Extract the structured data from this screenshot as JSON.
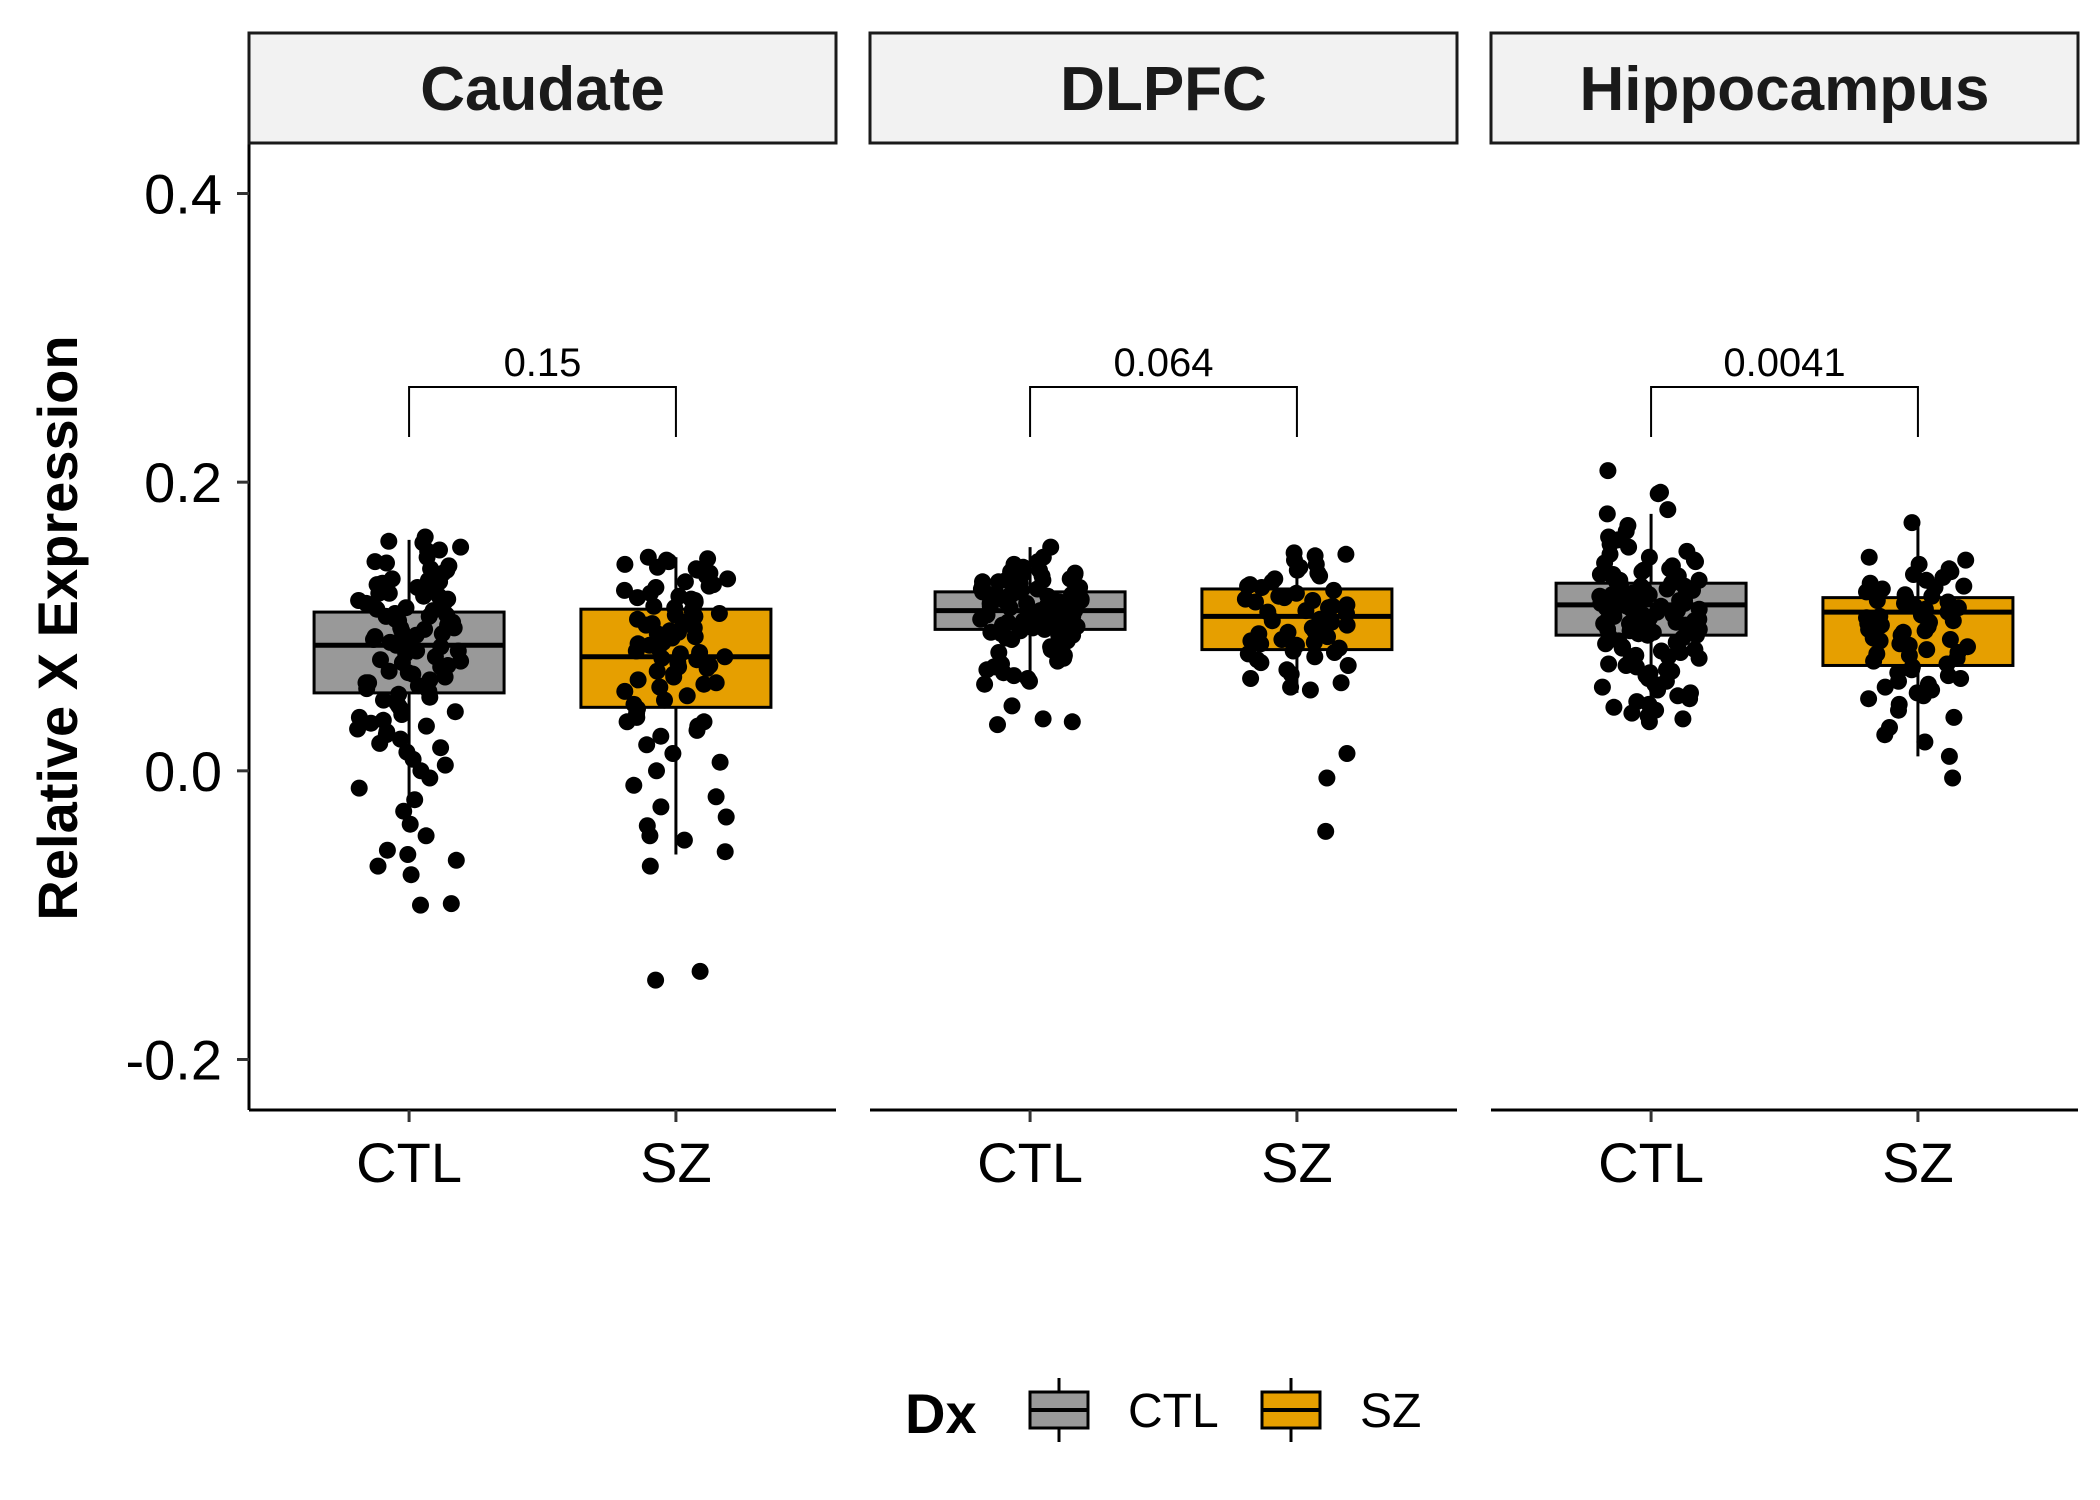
{
  "chart_data": {
    "type": "boxplot",
    "ylabel": "Relative X Expression",
    "ylim": [
      -0.235,
      0.435
    ],
    "y_ticks": [
      -0.2,
      0.0,
      0.2,
      0.4
    ],
    "y_tick_labels": [
      "-0.2",
      "0.0",
      "0.2",
      "0.4"
    ],
    "categories": [
      "CTL",
      "SZ"
    ],
    "colors": {
      "CTL": "#999999",
      "SZ": "#E69F00"
    },
    "legend": {
      "title": "Dx",
      "position": "bottom",
      "entries": [
        "CTL",
        "SZ"
      ]
    },
    "grid": false,
    "facets": [
      {
        "name": "Caudate",
        "p_value": "0.15",
        "boxes": [
          {
            "group": "CTL",
            "q1": 0.054,
            "median": 0.087,
            "q3": 0.11,
            "whisker_low": -0.027,
            "whisker_high": 0.16
          },
          {
            "group": "SZ",
            "q1": 0.044,
            "median": 0.079,
            "q3": 0.112,
            "whisker_low": -0.058,
            "whisker_high": 0.148
          }
        ],
        "points": [
          {
            "group": "CTL",
            "values": [
              0.162,
              0.159,
              0.158,
              0.155,
              0.152,
              0.148,
              0.145,
              0.142,
              0.14,
              0.137,
              0.135,
              0.133,
              0.131,
              0.129,
              0.127,
              0.125,
              0.123,
              0.121,
              0.119,
              0.117,
              0.115,
              0.113,
              0.111,
              0.109,
              0.107,
              0.105,
              0.103,
              0.101,
              0.099,
              0.097,
              0.095,
              0.093,
              0.091,
              0.089,
              0.087,
              0.085,
              0.083,
              0.081,
              0.079,
              0.077,
              0.075,
              0.073,
              0.071,
              0.069,
              0.067,
              0.065,
              0.063,
              0.061,
              0.059,
              0.057,
              0.055,
              0.053,
              0.051,
              0.049,
              0.047,
              0.045,
              0.043,
              0.041,
              0.039,
              0.037,
              0.035,
              0.033,
              0.031,
              0.029,
              0.027,
              0.025,
              0.022,
              0.019,
              0.016,
              0.013,
              0.008,
              0.004,
              0.0,
              -0.005,
              -0.012,
              -0.02,
              -0.028,
              -0.037,
              -0.045,
              -0.055,
              -0.058,
              -0.062,
              -0.066,
              -0.072,
              -0.092,
              -0.093,
              0.118,
              0.121,
              0.098,
              0.104,
              0.086,
              0.132,
              0.144,
              0.153,
              0.076,
              0.068,
              0.112,
              0.094,
              0.127,
              0.139,
              0.083,
              0.107,
              0.061,
              0.099,
              0.116,
              0.13,
              0.09,
              0.072,
              0.123,
              0.108
            ]
          },
          {
            "group": "SZ",
            "values": [
              0.148,
              0.147,
              0.146,
              0.145,
              0.143,
              0.141,
              0.139,
              0.137,
              0.135,
              0.133,
              0.131,
              0.129,
              0.127,
              0.125,
              0.123,
              0.121,
              0.119,
              0.117,
              0.115,
              0.113,
              0.111,
              0.109,
              0.107,
              0.105,
              0.103,
              0.101,
              0.099,
              0.097,
              0.095,
              0.093,
              0.091,
              0.089,
              0.087,
              0.085,
              0.083,
              0.081,
              0.079,
              0.077,
              0.075,
              0.073,
              0.071,
              0.069,
              0.067,
              0.065,
              0.063,
              0.061,
              0.058,
              0.055,
              0.052,
              0.049,
              0.046,
              0.043,
              0.04,
              0.037,
              0.034,
              0.031,
              0.028,
              0.024,
              0.018,
              0.012,
              0.006,
              0.0,
              -0.01,
              -0.018,
              -0.025,
              -0.032,
              -0.038,
              -0.045,
              -0.048,
              -0.056,
              -0.066,
              -0.139,
              -0.145,
              0.128,
              0.114,
              0.096,
              0.082,
              0.072,
              0.14,
              0.118,
              0.102,
              0.088,
              0.06,
              0.034,
              0.12,
              0.108,
              0.092,
              0.078
            ]
          }
        ]
      },
      {
        "name": "DLPFC",
        "p_value": "0.064",
        "boxes": [
          {
            "group": "CTL",
            "q1": 0.098,
            "median": 0.111,
            "q3": 0.124,
            "whisker_low": 0.068,
            "whisker_high": 0.155
          },
          {
            "group": "SZ",
            "q1": 0.084,
            "median": 0.107,
            "q3": 0.126,
            "whisker_low": 0.054,
            "whisker_high": 0.15
          }
        ],
        "points": [
          {
            "group": "CTL",
            "values": [
              0.155,
              0.148,
              0.145,
              0.143,
              0.141,
              0.14,
              0.139,
              0.138,
              0.137,
              0.136,
              0.135,
              0.134,
              0.133,
              0.132,
              0.131,
              0.13,
              0.129,
              0.128,
              0.127,
              0.126,
              0.125,
              0.124,
              0.123,
              0.122,
              0.121,
              0.12,
              0.119,
              0.118,
              0.117,
              0.116,
              0.115,
              0.114,
              0.113,
              0.112,
              0.111,
              0.11,
              0.109,
              0.108,
              0.107,
              0.106,
              0.105,
              0.104,
              0.103,
              0.102,
              0.101,
              0.1,
              0.099,
              0.098,
              0.097,
              0.096,
              0.095,
              0.094,
              0.093,
              0.092,
              0.091,
              0.09,
              0.088,
              0.086,
              0.084,
              0.082,
              0.08,
              0.078,
              0.076,
              0.074,
              0.072,
              0.07,
              0.068,
              0.066,
              0.064,
              0.062,
              0.06,
              0.045,
              0.036,
              0.034,
              0.032,
              0.128,
              0.118,
              0.112,
              0.106,
              0.1,
              0.126,
              0.116,
              0.11,
              0.104,
              0.098,
              0.132,
              0.122,
              0.114,
              0.108,
              0.102,
              0.094,
              0.136,
              0.124,
              0.119,
              0.113,
              0.107,
              0.101,
              0.131,
              0.121,
              0.111,
              0.097
            ]
          },
          {
            "group": "SZ",
            "values": [
              0.151,
              0.15,
              0.149,
              0.146,
              0.143,
              0.141,
              0.139,
              0.137,
              0.135,
              0.133,
              0.131,
              0.129,
              0.127,
              0.125,
              0.123,
              0.121,
              0.119,
              0.117,
              0.115,
              0.113,
              0.111,
              0.109,
              0.107,
              0.105,
              0.103,
              0.101,
              0.099,
              0.097,
              0.095,
              0.093,
              0.091,
              0.089,
              0.087,
              0.085,
              0.083,
              0.081,
              0.079,
              0.077,
              0.075,
              0.073,
              0.07,
              0.067,
              0.064,
              0.061,
              0.058,
              0.056,
              0.012,
              -0.005,
              -0.042,
              0.12,
              0.11,
              0.1,
              0.09,
              0.128,
              0.114,
              0.096,
              0.082,
              0.118,
              0.104,
              0.088
            ]
          }
        ]
      },
      {
        "name": "Hippocampus",
        "p_value": "0.0041",
        "boxes": [
          {
            "group": "CTL",
            "q1": 0.094,
            "median": 0.115,
            "q3": 0.13,
            "whisker_low": 0.035,
            "whisker_high": 0.178
          },
          {
            "group": "SZ",
            "q1": 0.073,
            "median": 0.11,
            "q3": 0.12,
            "whisker_low": 0.01,
            "whisker_high": 0.172
          }
        ],
        "points": [
          {
            "group": "CTL",
            "values": [
              0.208,
              0.193,
              0.192,
              0.181,
              0.178,
              0.17,
              0.166,
              0.162,
              0.16,
              0.157,
              0.155,
              0.152,
              0.15,
              0.148,
              0.146,
              0.144,
              0.142,
              0.14,
              0.138,
              0.136,
              0.134,
              0.132,
              0.13,
              0.128,
              0.126,
              0.124,
              0.122,
              0.12,
              0.118,
              0.116,
              0.114,
              0.112,
              0.11,
              0.108,
              0.106,
              0.104,
              0.102,
              0.1,
              0.098,
              0.096,
              0.094,
              0.092,
              0.09,
              0.088,
              0.086,
              0.084,
              0.082,
              0.08,
              0.078,
              0.076,
              0.074,
              0.072,
              0.07,
              0.068,
              0.066,
              0.064,
              0.062,
              0.06,
              0.058,
              0.056,
              0.054,
              0.052,
              0.05,
              0.048,
              0.046,
              0.044,
              0.042,
              0.04,
              0.038,
              0.036,
              0.034,
              0.128,
              0.118,
              0.112,
              0.106,
              0.1,
              0.126,
              0.116,
              0.11,
              0.104,
              0.098,
              0.132,
              0.122,
              0.114,
              0.108,
              0.102,
              0.094,
              0.136,
              0.124,
              0.119,
              0.113,
              0.107,
              0.101,
              0.131,
              0.121,
              0.111,
              0.097,
              0.125,
              0.115,
              0.105,
              0.095,
              0.085,
              0.139,
              0.129,
              0.117,
              0.109,
              0.099,
              0.089,
              0.079,
              0.069,
              0.145,
              0.135,
              0.123,
              0.103,
              0.093,
              0.083,
              0.073
            ]
          },
          {
            "group": "SZ",
            "values": [
              0.172,
              0.148,
              0.146,
              0.143,
              0.14,
              0.138,
              0.136,
              0.134,
              0.132,
              0.13,
              0.128,
              0.126,
              0.124,
              0.122,
              0.12,
              0.118,
              0.116,
              0.114,
              0.112,
              0.11,
              0.108,
              0.106,
              0.104,
              0.102,
              0.1,
              0.098,
              0.096,
              0.094,
              0.092,
              0.09,
              0.088,
              0.086,
              0.084,
              0.082,
              0.08,
              0.078,
              0.076,
              0.074,
              0.072,
              0.07,
              0.068,
              0.066,
              0.064,
              0.062,
              0.06,
              0.058,
              0.056,
              0.054,
              0.052,
              0.05,
              0.046,
              0.042,
              0.037,
              0.03,
              0.025,
              0.02,
              0.01,
              -0.005,
              0.121,
              0.111,
              0.101,
              0.091,
              0.081,
              0.127,
              0.117,
              0.107,
              0.097,
              0.087,
              0.113,
              0.103
            ]
          }
        ]
      }
    ]
  }
}
